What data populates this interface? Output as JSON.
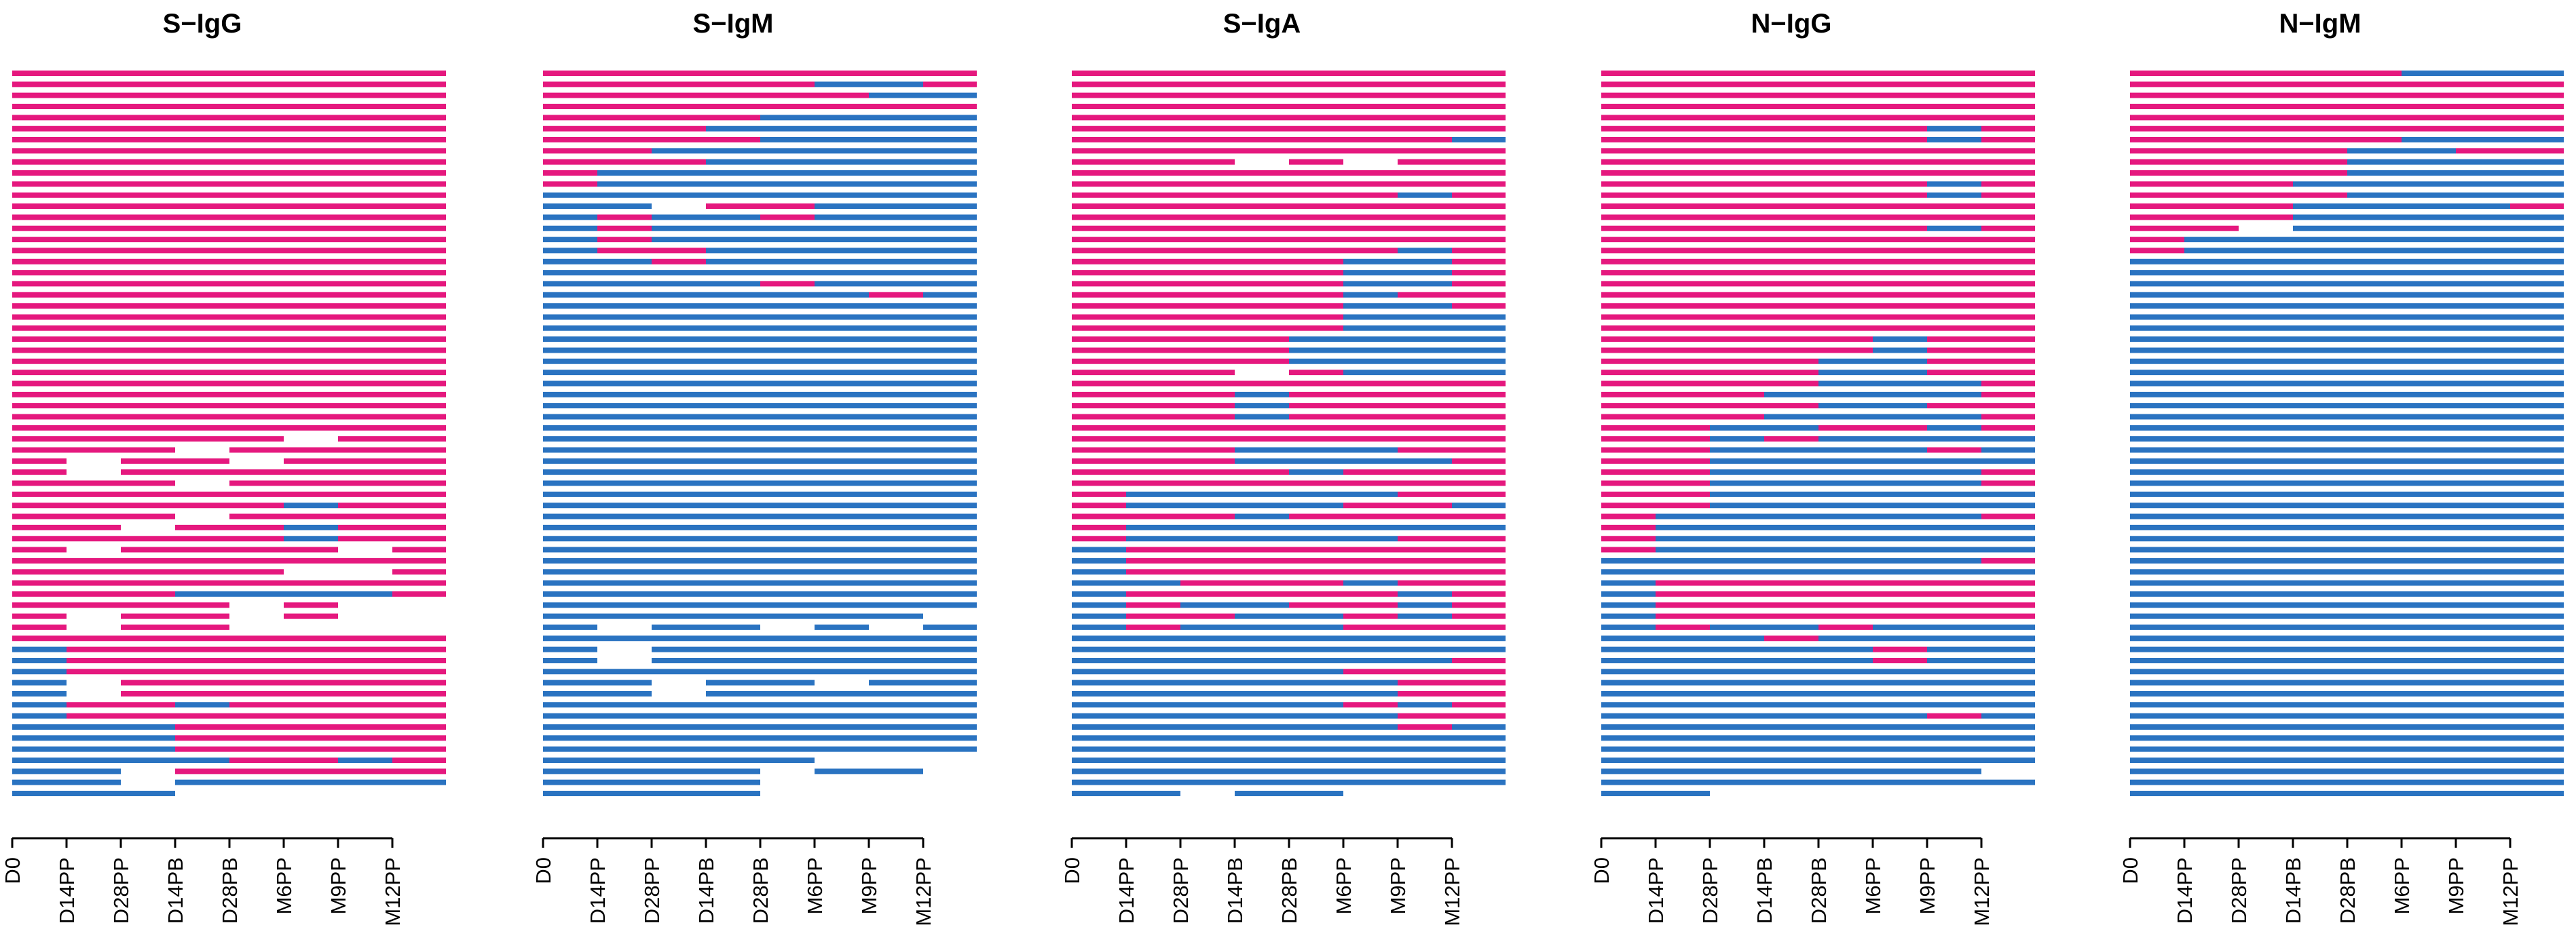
{
  "chart_data": {
    "type": "swimmer-lanes",
    "description_of_encoding": "Each row is one subject; each horizontal segment spans one interval between adjacent timepoints; color encodes status at that interval; gaps mean no data.",
    "colors": {
      "positive": "#e5187e",
      "negative": "#2a73c1"
    },
    "timepoints": [
      "D0",
      "D14PP",
      "D28PP",
      "D14PB",
      "D28PB",
      "M6PP",
      "M9PP",
      "M12PP"
    ],
    "panels": [
      {
        "title": "S−IgG",
        "ticks": [
          "D0",
          "D14PP",
          "D28PP",
          "D14PB",
          "D28PB",
          "M6PP",
          "M9PP",
          "M12PP"
        ],
        "rows": [
          "PPPPPPPP",
          "PPPPPPPP",
          "PPPPPPPP",
          "PPPPPPPP",
          "PPPPPPPP",
          "PPPPPPPP",
          "PPPPPPPP",
          "PPPPPPPP",
          "PPPPPPPP",
          "PPPPPPPP",
          "PPPPPPPP",
          "PPPPPPPP",
          "PPPPPPPP",
          "PPPPPPPP",
          "PPPPPPPP",
          "PPPPPPPP",
          "PPPPPPPP",
          "PPPPPPPP",
          "PPPPPPPP",
          "PPPPPPPP",
          "PPPPPPPP",
          "PPPPPPPP",
          "PPPPPPPP",
          "PPPPPPPP",
          "PPPPPPPP",
          "PPPPPPPP",
          "PPPPPPPP",
          "PPPPPPPP",
          "PPPPPPPP",
          "PPPPPPPP",
          "PPPPPPPP",
          "PPPPPPPP",
          "PPPPPPPP",
          "PPPPP.PP",
          "PPP.PPPP",
          "P.PP.PPP",
          "P.PPPPPP",
          "PPP.PPPP",
          "PPPPPPPP",
          "PPPPPNPP",
          "PPP.PPPP",
          "PP.PPNPP",
          "PPPPPNPP",
          "P.PPPP.P",
          "PPPPPPPP",
          "PPPPP..P",
          "PPPPPPPP",
          "PPPNNNNP",
          "PPPP.P..",
          "P.PP.P..",
          "P.PP....",
          "PPPPPPPP",
          "NPPPPPPP",
          "NPPPPPPP",
          "NPPPPPPP",
          "N.PPPPPP",
          "N.PPPPPP",
          "NPPNPPPP",
          "NPPPPPPP",
          "NNNPPPPP",
          "NNNPPPPP",
          "NNNPPPPP",
          "NNNNPPNP",
          "NN.PPPPP",
          "NN.NNNNN",
          "NNN....."
        ]
      },
      {
        "title": "S−IgM",
        "ticks": [
          "D0",
          "D14PP",
          "D28PP",
          "D14PB",
          "D28PB",
          "M6PP",
          "M9PP",
          "M12PP"
        ],
        "rows": [
          "PPPPPPPP",
          "PPPPPNNP",
          "PPPPPPNN",
          "PPPPPPPP",
          "PPPPNNNN",
          "PPPNNNNN",
          "PPPPNNNN",
          "PPNNNNNN",
          "PPPNNNNN",
          "PNNNNNNN",
          "PNNNNNNN",
          "NNNNNNNN",
          "NN.PPNNN",
          "NPNNPNNN",
          "NPNNNNNN",
          "NPNNNNNN",
          "NPPNNNNN",
          "NNPNNNNN",
          "NNNNNNNN",
          "NNNNPNNN",
          "NNNNNNPN",
          "NNNNNNNN",
          "NNNNNNNN",
          "NNNNNNNN",
          "NNNNNNNN",
          "NNNNNNNN",
          "NNNNNNNN",
          "NNNNNNNN",
          "NNNNNNNN",
          "NNNNNNNN",
          "NNNNNNNN",
          "NNNNNNNN",
          "NNNNNNNN",
          "NNNNNNNN",
          "NNNNNNNN",
          "NNNNNNNN",
          "NNNNNNNN",
          "NNNNNNNN",
          "NNNNNNNN",
          "NNNNNNNN",
          "NNNNNNNN",
          "NNNNNNNN",
          "NNNNNNNN",
          "NNNNNNNN",
          "NNNNNNNN",
          "NNNNNNNN",
          "NNNNNNNN",
          "NNNNNNNN",
          "NNNNNNNN",
          "NNNNNNN.",
          "N.NN.N.N",
          "NNNNNNNN",
          "N.NNNNNN",
          "N.NNNNNN",
          "NNNNNNNN",
          "NN.NN.NN",
          "NN.NNNNN",
          "NNNNNNNN",
          "NNNNNNNN",
          "NNNNNNNN",
          "NNNNNNNN",
          "NNNNNNNN",
          "NNNNN...",
          "NNNN.NN.",
          "NNNN....",
          "NNNN...."
        ]
      },
      {
        "title": "S−IgA",
        "ticks": [
          "D0",
          "D14PP",
          "D28PP",
          "D14PB",
          "D28PB",
          "M6PP",
          "M9PP",
          "M12PP"
        ],
        "rows": [
          "PPPPPPPP",
          "PPPPPPPP",
          "PPPPPPPP",
          "PPPPPPPP",
          "PPPPPPPP",
          "PPPPPPPP",
          "PPPPPPPN",
          "PPPPPPPP",
          "PPP.P.PP",
          "PPPPPPPP",
          "PPPPPPPP",
          "PPPPPPNP",
          "PPPPPPPP",
          "PPPPPPPP",
          "PPPPPPPP",
          "PPPPPPPP",
          "PPPPPPNP",
          "PPPPPNNP",
          "PPPPPNNP",
          "PPPPPNNP",
          "PPPPPNPP",
          "PPPPPNNP",
          "PPPPPNNN",
          "PPPPPNNN",
          "PPPPNNNN",
          "PPPPNNNN",
          "PPPPNNNN",
          "PPP.PNNN",
          "PPPPPPPP",
          "PPPNPPPP",
          "PPPNPPPP",
          "PPPNPPPP",
          "PPPPPPPP",
          "PPPPPPPP",
          "PPPNNNPP",
          "PPPNNNNP",
          "PPPPNPPP",
          "PPPPPPPP",
          "PNNNNNPP",
          "PNNNNPPN",
          "PPPNPPPP",
          "PNNNNNNN",
          "PNNNNNPP",
          "NPPPPPPP",
          "NPPPPPPP",
          "NPPPPPPP",
          "NNPPPNPP",
          "NPPPPPNP",
          "NPNNPPNP",
          "NPPNNPNP",
          "NPNNNPPP",
          "NNNNNNNN",
          "NNNNNNNN",
          "NNNNNNNP",
          "NNNNNPPP",
          "NNNNNNPP",
          "NNNNNNPP",
          "NNNNNPNP",
          "NNNNNNPP",
          "NNNNNNPN",
          "NNNNNNNN",
          "NNNNNNNN",
          "NNNNNNNN",
          "NNNNNNNN",
          "NNNNNNNN",
          "NN.NN..."
        ]
      },
      {
        "title": "N−IgG",
        "ticks": [
          "D0",
          "D14PP",
          "D28PP",
          "D14PB",
          "D28PB",
          "M6PP",
          "M9PP",
          "M12PP"
        ],
        "rows": [
          "PPPPPPPP",
          "PPPPPPPP",
          "PPPPPPPP",
          "PPPPPPPP",
          "PPPPPPPP",
          "PPPPPPNP",
          "PPPPPPNP",
          "PPPPPPPP",
          "PPPPPPPP",
          "PPPPPPPP",
          "PPPPPPNP",
          "PPPPPPNP",
          "PPPPPPPP",
          "PPPPPPPP",
          "PPPPPPNP",
          "PPPPPPPP",
          "PPPPPPPP",
          "PPPPPPPP",
          "PPPPPPPP",
          "PPPPPPPP",
          "PPPPPPPP",
          "PPPPPPPP",
          "PPPPPPPP",
          "PPPPPPPP",
          "PPPPPNPP",
          "PPPPPNPP",
          "PPPPNNPP",
          "PPPPNNPP",
          "PPPPNNNP",
          "PPPNNNNP",
          "PPPPNNPP",
          "PPPNNNNP",
          "PPNNPPNP",
          "PPNPNNNN",
          "PPNNNNPN",
          "PPNNNNNN",
          "PPNNNNNP",
          "PPNNNNNP",
          "PPNNNNNN",
          "PPNNNNNN",
          "PNNNNNNP",
          "PNNNNNNN",
          "PNNNNNNN",
          "PNNNNNNN",
          "NNNNNNNP",
          "NNNNNNNN",
          "NPPPPPPP",
          "NPPPPPPP",
          "NPPPPPPP",
          "NPPPPPPP",
          "NPNNPNNN",
          "NNNPNNNN",
          "NNNNNPNN",
          "NNNNNPNN",
          "NNNNNNNN",
          "NNNNNNNN",
          "NNNNNNNN",
          "NNNNNNNN",
          "NNNNNNPN",
          "NNNNNNNN",
          "NNNNNNNN",
          "NNNNNNNN",
          "NNNNNNNN",
          "NNNNNNN.",
          "NNNNNNNN",
          "NN......"
        ]
      },
      {
        "title": "N−IgM",
        "ticks": [
          "D0",
          "D14PP",
          "D28PP",
          "D14PB",
          "D28PB",
          "M6PP",
          "M9PP",
          "M12PP"
        ],
        "rows": [
          "PPPPPNNN",
          "PPPPPPPP",
          "PPPPPPPP",
          "PPPPPPPP",
          "PPPPPPPP",
          "PPPPPPPP",
          "PPPPPNNN",
          "PPPPNNPP",
          "PPPPNNNN",
          "PPPPNNNN",
          "PPPNNNNN",
          "PPPPNNNN",
          "PPPNNNNP",
          "PPPNNNNN",
          "PP.NNNNN",
          "PNNNNNNN",
          "PNNNNNNN",
          "NNNNNNNN",
          "NNNNNNNN",
          "NNNNNNNN",
          "NNNNNNNN",
          "NNNNNNNN",
          "NNNNNNNN",
          "NNNNNNNN",
          "NNNNNNNN",
          "NNNNNNNN",
          "NNNNNNNN",
          "NNNNNNNN",
          "NNNNNNNN",
          "NNNNNNNN",
          "NNNNNNNN",
          "NNNNNNNN",
          "NNNNNNNN",
          "NNNNNNNN",
          "NNNNNNNN",
          "NNNNNNNN",
          "NNNNNNNN",
          "NNNNNNNN",
          "NNNNNNNN",
          "NNNNNNNN",
          "NNNNNNNN",
          "NNNNNNNN",
          "NNNNNNNN",
          "NNNNNNNN",
          "NNNNNNNN",
          "NNNNNNNN",
          "NNNNNNNN",
          "NNNNNNNN",
          "NNNNNNNN",
          "NNNNNNNN",
          "NNNNNNNN",
          "NNNNNNNN",
          "NNNNNNNN",
          "NNNNNNNN",
          "NNNNNNNN",
          "NNNNNNNN",
          "NNNNNNNN",
          "NNNNNNNN",
          "NNNNNNNN",
          "NNNNNNNN",
          "NNNNNNNN",
          "NNNNNNNN",
          "NNNNNNNN",
          "NNNNNNNN",
          "NNNNNNNN",
          "NNNNNNNN"
        ]
      }
    ]
  }
}
